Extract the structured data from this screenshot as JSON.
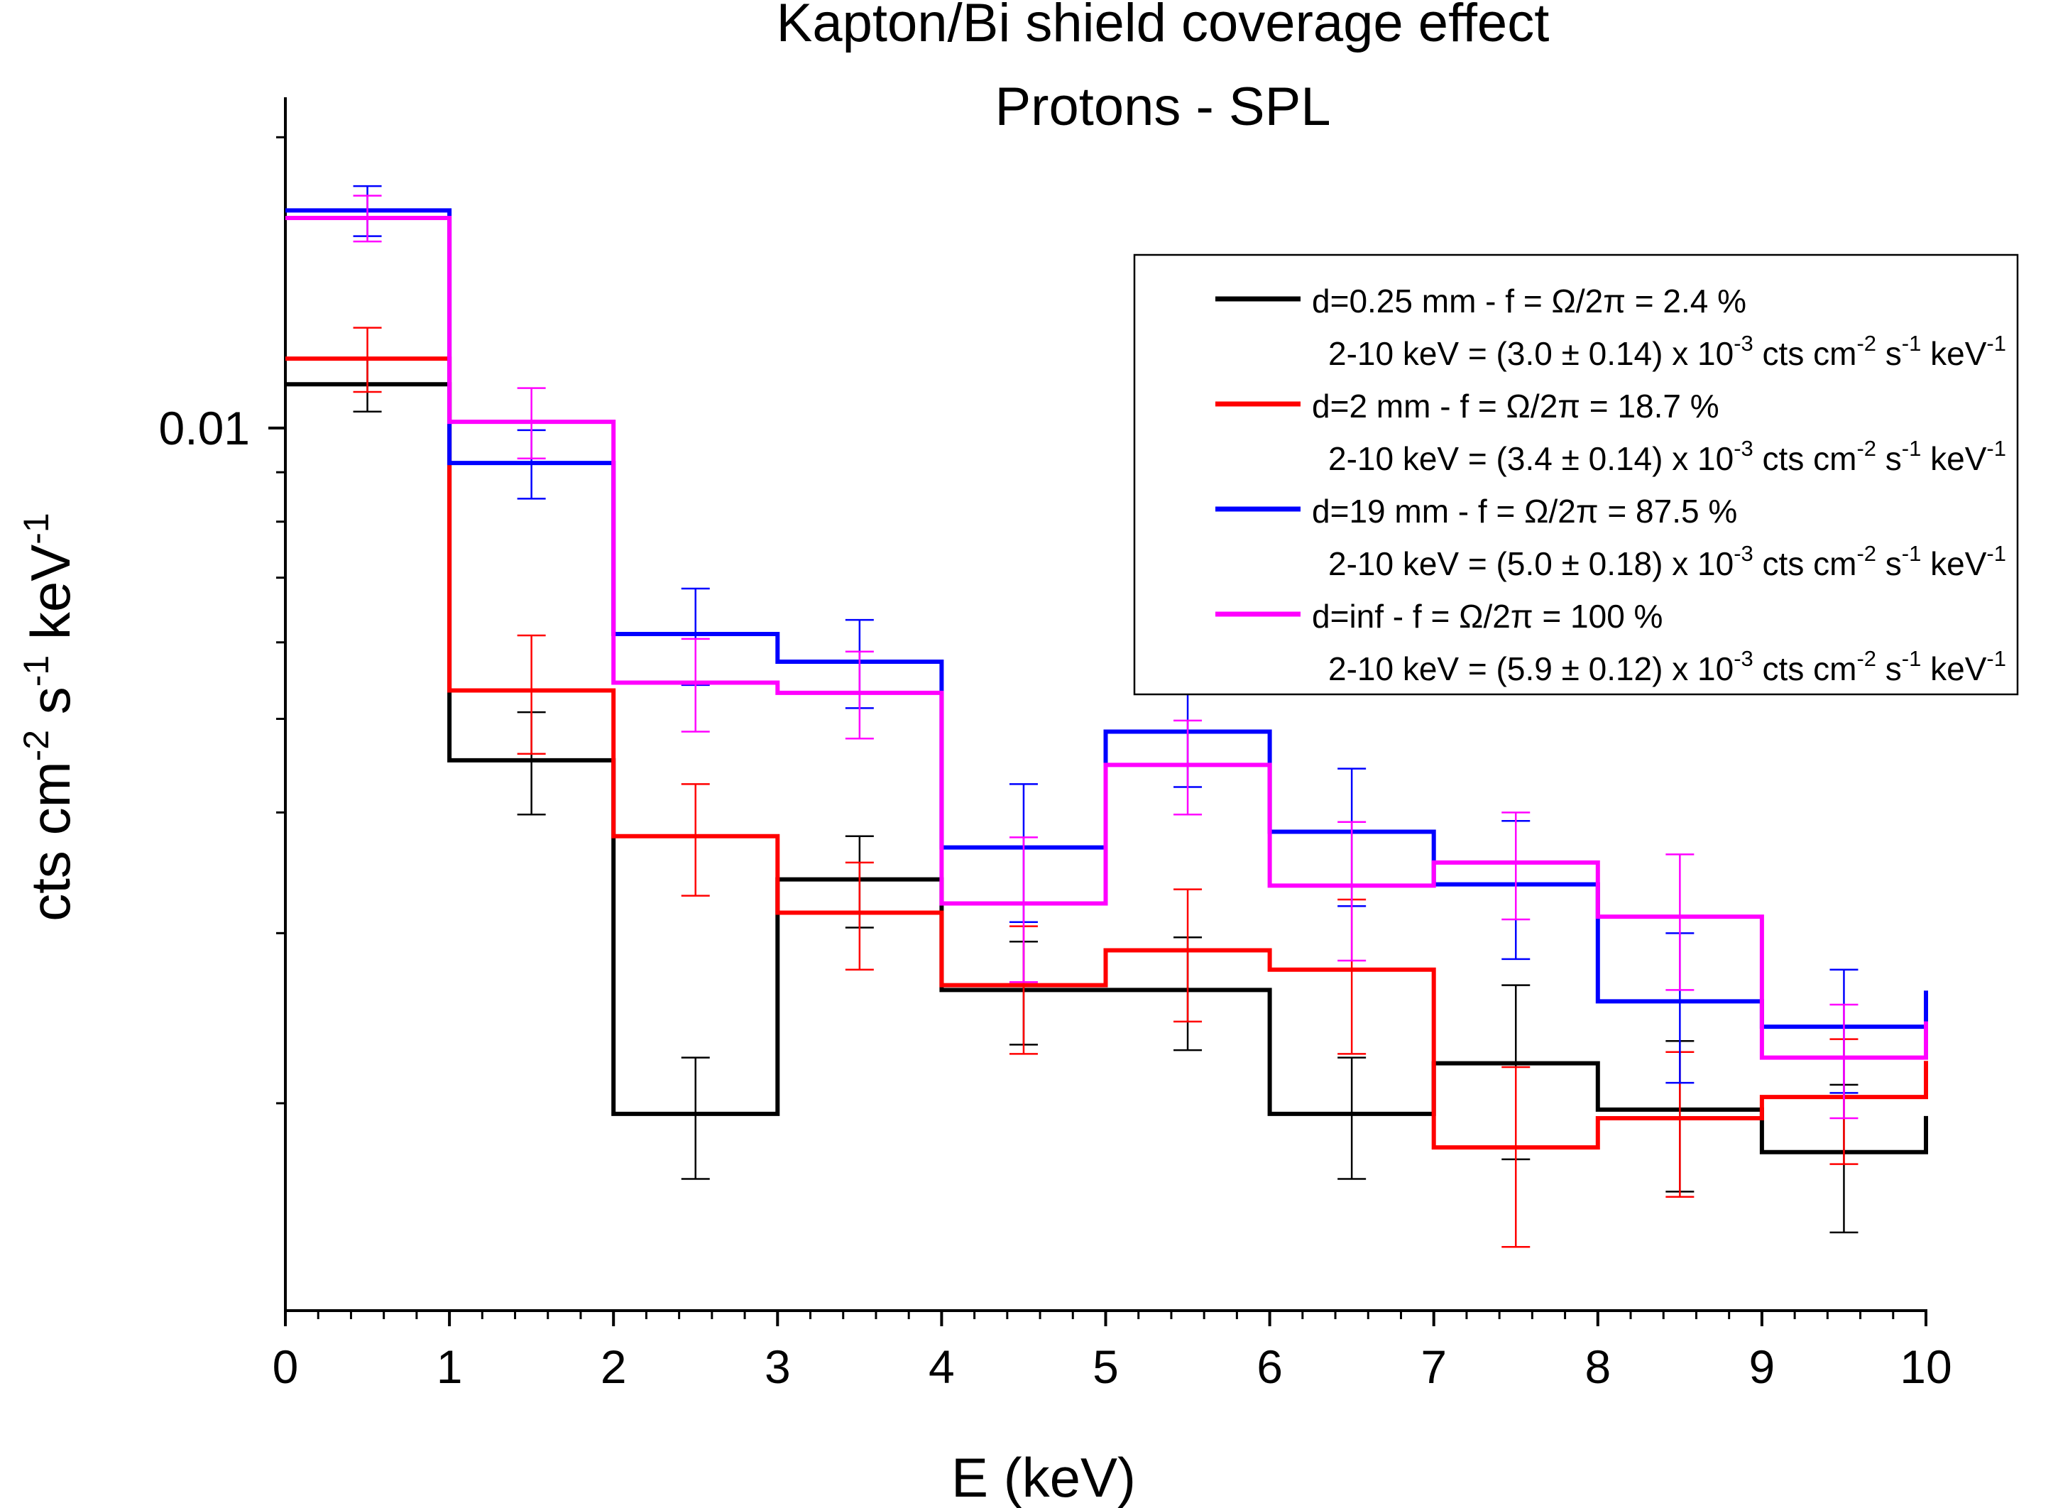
{
  "chart_data": {
    "type": "line",
    "subtype": "step-histogram-with-error-bars",
    "title": "Kapton/Bi shield coverage effect",
    "subtitle": "Protons - SPL",
    "xlabel": "E (keV)",
    "ylabel": {
      "base": "cts cm",
      "exp1": "-2",
      "mid1": " s",
      "exp2": "-1",
      "mid2": " keV",
      "exp3": "-1"
    },
    "xlim": [
      0,
      10
    ],
    "ylim": [
      0.00122,
      0.022
    ],
    "yscale": "log",
    "x_ticks": [
      "0",
      "1",
      "2",
      "3",
      "4",
      "5",
      "6",
      "7",
      "8",
      "9",
      "10"
    ],
    "y_tick_label": {
      "value": 0.01,
      "label": "0.01"
    },
    "bin_edges": [
      0,
      1,
      2,
      3,
      4,
      5,
      6,
      7,
      8,
      9,
      10
    ],
    "bin_centers": [
      0.5,
      1.5,
      2.5,
      3.5,
      4.5,
      5.5,
      6.5,
      7.5,
      8.5,
      9.5
    ],
    "legend_position": "top-right",
    "series": [
      {
        "name": "d=0.25 mm - f = Ω/2π = 2.4 %",
        "rate_prefix": "2-10 keV = (3.0 ± 0.14) x 10",
        "color": "#000000",
        "values": [
          0.0111,
          0.00453,
          0.00195,
          0.00341,
          0.00262,
          0.00262,
          0.00195,
          0.0022,
          0.00197,
          0.00178
        ],
        "errors": [
          0.0007,
          0.00055,
          0.00028,
          0.00037,
          0.00032,
          0.00035,
          0.00028,
          0.00045,
          0.00035,
          0.00031
        ]
      },
      {
        "name": "d=2 mm - f = Ω/2π = 18.7 %",
        "rate_prefix": "2-10 keV = (3.4 ± 0.14) x 10",
        "color": "#ff0000",
        "values": [
          0.0118,
          0.00535,
          0.00378,
          0.00315,
          0.00265,
          0.00288,
          0.00275,
          0.0018,
          0.00193,
          0.00203
        ],
        "errors": [
          0.0009,
          0.00075,
          0.0005,
          0.0004,
          0.0004,
          0.00045,
          0.0005,
          0.00038,
          0.00033,
          0.0003
        ]
      },
      {
        "name": "d=19 mm - f = Ω/2π = 87.5 %",
        "rate_prefix": "2-10 keV = (5.0 ± 0.18) x 10",
        "color": "#0000ff",
        "values": [
          0.0168,
          0.0092,
          0.00612,
          0.00573,
          0.00368,
          0.00485,
          0.00382,
          0.00337,
          0.00255,
          0.0024
        ],
        "errors": [
          0.001,
          0.00075,
          0.0007,
          0.0006,
          0.0006,
          0.0006,
          0.00062,
          0.00055,
          0.00045,
          0.00035
        ]
      },
      {
        "name": "d=inf - f = Ω/2π = 100 %",
        "rate_prefix": "2-10 keV = (5.9 ± 0.12) x 10",
        "color": "#ff00ff",
        "values": [
          0.0165,
          0.01015,
          0.00545,
          0.00532,
          0.00322,
          0.00448,
          0.00336,
          0.00355,
          0.00312,
          0.00223
        ],
        "errors": [
          0.0009,
          0.00085,
          0.0006,
          0.00055,
          0.00055,
          0.0005,
          0.00055,
          0.00045,
          0.0005,
          0.0003
        ]
      }
    ],
    "rate_exponent": "-3",
    "rate_units": {
      "base": " cts cm",
      "exp1": "-2",
      "mid1": " s",
      "exp2": "-1",
      "mid2": " keV",
      "exp3": "-1"
    }
  }
}
